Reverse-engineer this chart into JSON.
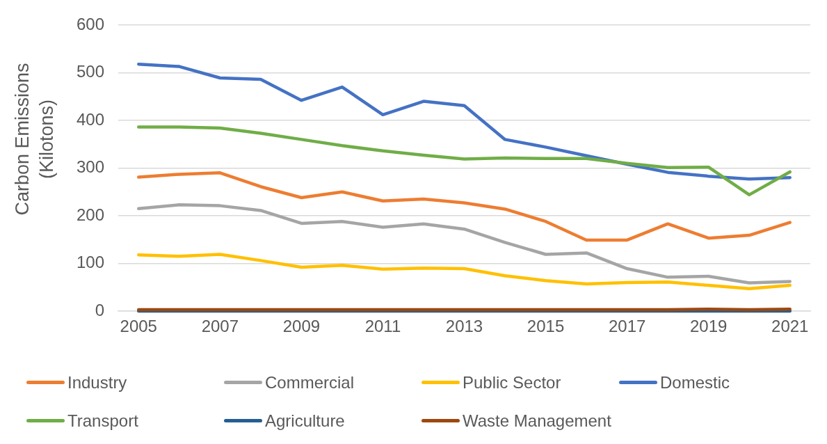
{
  "chart_data": {
    "type": "line",
    "ylabel": "Carbon Emissions (Kilotons)",
    "categories": [
      "2005",
      null,
      "2007",
      null,
      "2009",
      null,
      "2011",
      null,
      "2013",
      null,
      "2015",
      null,
      "2017",
      null,
      "2019",
      null,
      "2021"
    ],
    "series": [
      {
        "name": "Industry",
        "color": "#ed7d31",
        "values": [
          281,
          287,
          290,
          261,
          238,
          250,
          231,
          235,
          227,
          214,
          188,
          149,
          149,
          183,
          153,
          159,
          186
        ]
      },
      {
        "name": "Commercial",
        "color": "#a5a5a5",
        "values": [
          215,
          223,
          221,
          211,
          184,
          188,
          176,
          183,
          172,
          144,
          119,
          122,
          89,
          71,
          73,
          59,
          62
        ]
      },
      {
        "name": "Public Sector",
        "color": "#ffc000",
        "values": [
          118,
          115,
          119,
          106,
          92,
          96,
          88,
          90,
          89,
          74,
          64,
          57,
          60,
          61,
          54,
          47,
          54
        ]
      },
      {
        "name": "Domestic",
        "color": "#4472c4",
        "values": [
          518,
          513,
          489,
          486,
          442,
          470,
          412,
          440,
          431,
          360,
          344,
          326,
          308,
          291,
          283,
          277,
          280
        ]
      },
      {
        "name": "Transport",
        "color": "#70ad47",
        "values": [
          386,
          386,
          384,
          373,
          360,
          347,
          336,
          327,
          319,
          321,
          320,
          320,
          310,
          301,
          302,
          244,
          292
        ]
      },
      {
        "name": "Agriculture",
        "color": "#255e91",
        "values": [
          0,
          0,
          0,
          0,
          0,
          0,
          0,
          0,
          0,
          0,
          0,
          0,
          0,
          0,
          0,
          0,
          0
        ]
      },
      {
        "name": "Waste Management",
        "color": "#9e480e",
        "values": [
          3,
          3,
          3,
          3,
          3,
          3,
          3,
          3,
          3,
          3,
          3,
          3,
          3,
          3,
          4,
          3,
          4
        ]
      }
    ],
    "ylim": [
      0,
      600
    ],
    "yticks": [
      0,
      100,
      200,
      300,
      400,
      500,
      600
    ],
    "grid": "y",
    "legend": "bottom",
    "marker": "none"
  }
}
